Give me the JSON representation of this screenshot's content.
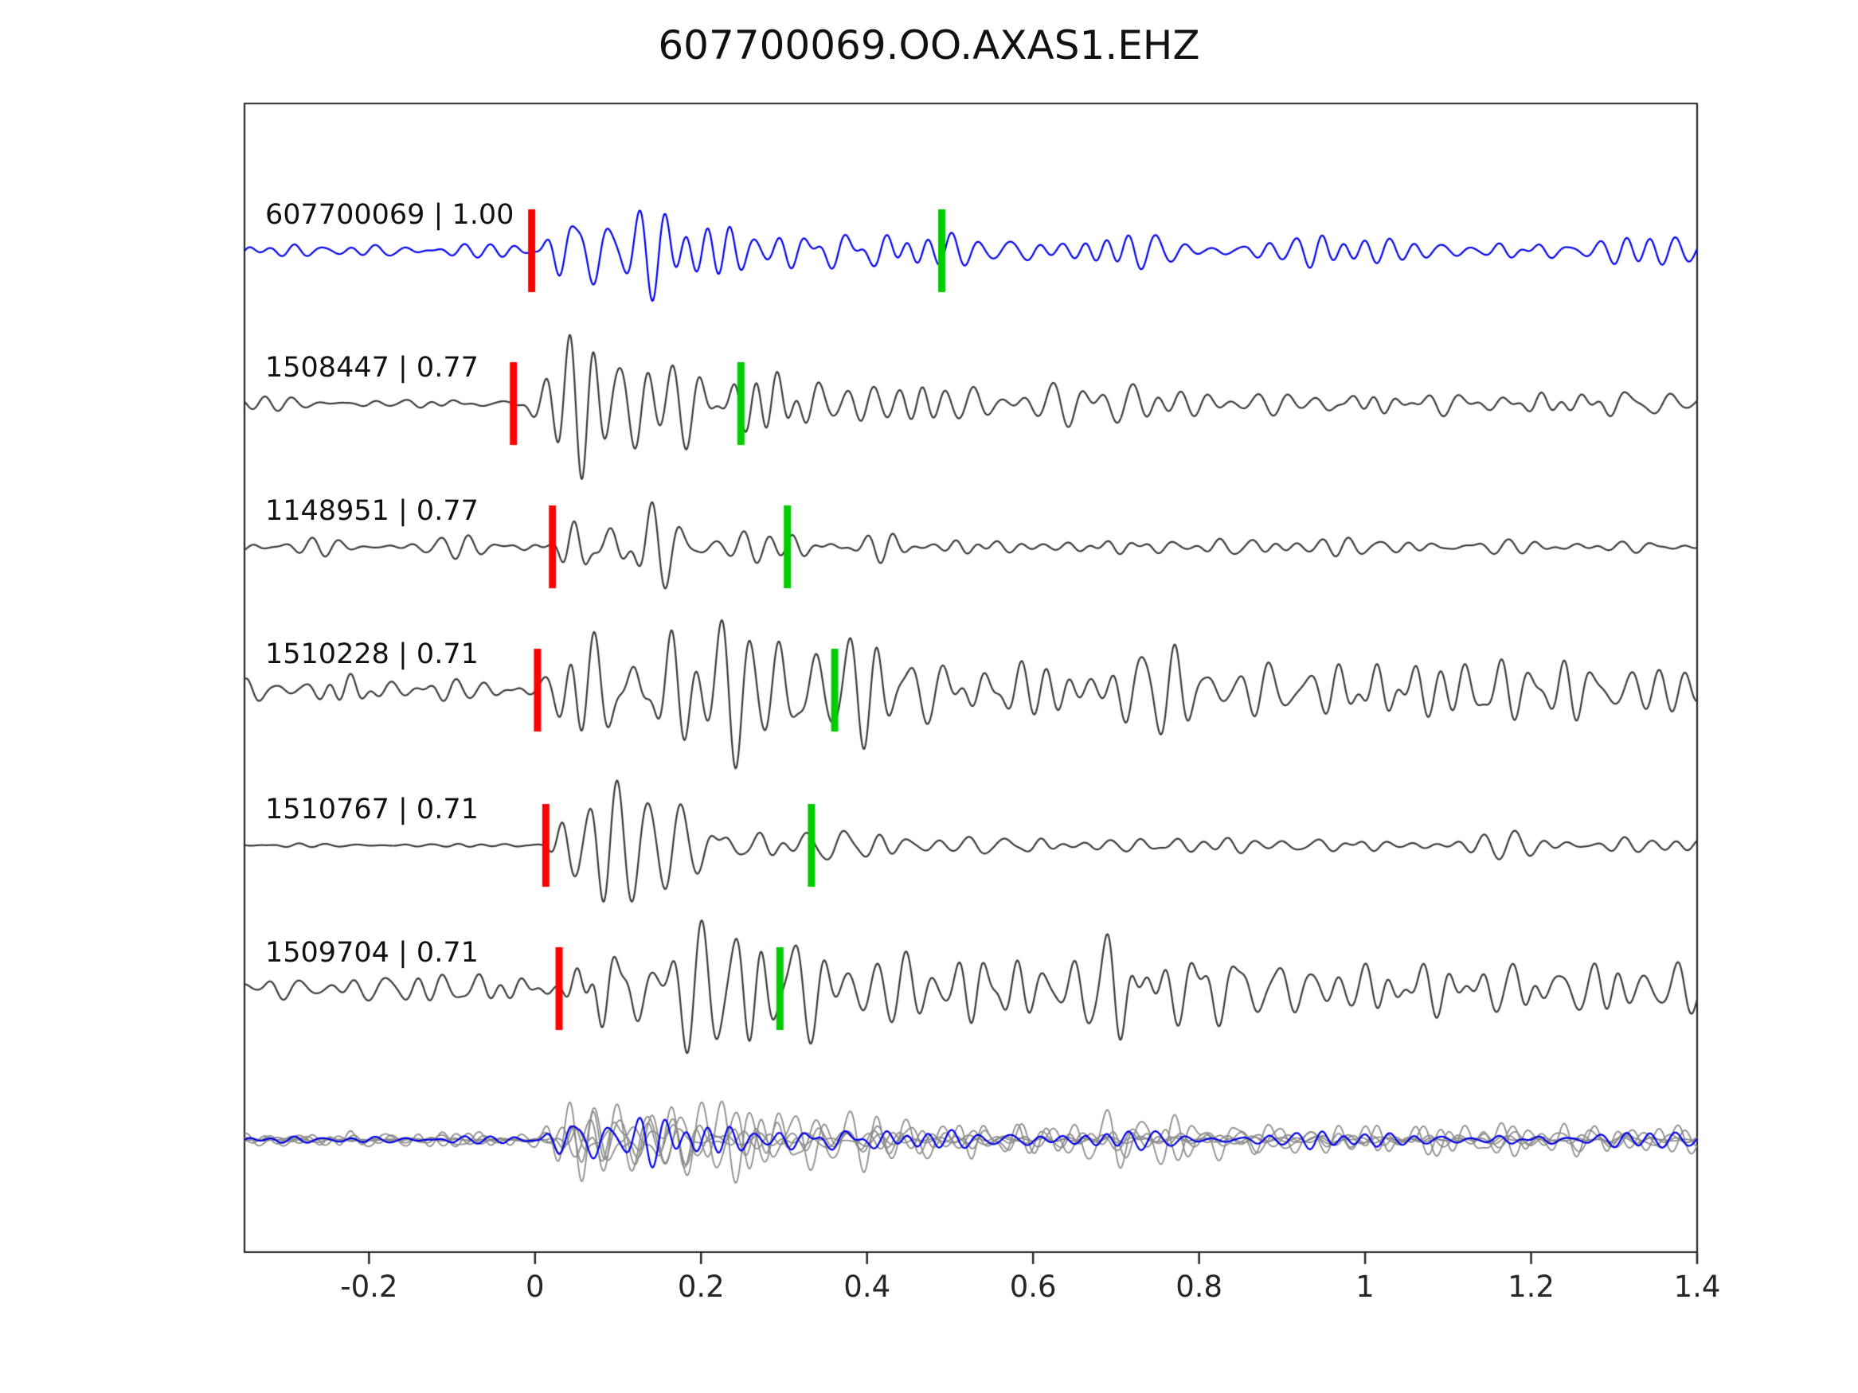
{
  "chart_data": {
    "type": "line",
    "title": "607700069.OO.AXAS1.EHZ",
    "xlabel": "",
    "ylabel": "",
    "xlim": [
      -0.35,
      1.4
    ],
    "grid": false,
    "legend": "none",
    "x_ticks": [
      -0.2,
      0,
      0.2,
      0.4,
      0.6,
      0.8,
      1,
      1.2,
      1.4
    ],
    "x_tick_labels": [
      "-0.2",
      "0",
      "0.2",
      "0.4",
      "0.6",
      "0.8",
      "1",
      "1.2",
      "1.4"
    ],
    "traces": [
      {
        "id": "607700069",
        "correlation": "1.00",
        "label": "607700069 | 1.00",
        "color": "#0000ee",
        "pick_red": -0.004,
        "pick_green": 0.49,
        "seed": 11,
        "pre_amp": 8,
        "burst_amp": 92,
        "rise": 0.045,
        "decay": 0.22,
        "tail_amp": 13
      },
      {
        "id": "1508447",
        "correlation": "0.77",
        "label": "1508447 | 0.77",
        "color": "#3a3a3a",
        "pick_red": -0.026,
        "pick_green": 0.248,
        "seed": 23,
        "pre_amp": 7,
        "burst_amp": 90,
        "rise": 0.045,
        "decay": 0.26,
        "tail_amp": 16
      },
      {
        "id": "1148951",
        "correlation": "0.77",
        "label": "1148951 | 0.77",
        "color": "#3a3a3a",
        "pick_red": 0.021,
        "pick_green": 0.304,
        "seed": 37,
        "pre_amp": 9,
        "burst_amp": 74,
        "rise": 0.04,
        "decay": 0.18,
        "tail_amp": 9
      },
      {
        "id": "1510228",
        "correlation": "0.71",
        "label": "1510228 | 0.71",
        "color": "#3a3a3a",
        "pick_red": 0.003,
        "pick_green": 0.361,
        "seed": 41,
        "pre_amp": 30,
        "burst_amp": 84,
        "rise": 0.045,
        "decay": 0.45,
        "tail_amp": 34
      },
      {
        "id": "1510767",
        "correlation": "0.71",
        "label": "1510767 | 0.71",
        "color": "#3a3a3a",
        "pick_red": 0.013,
        "pick_green": 0.333,
        "seed": 53,
        "pre_amp": 3.5,
        "burst_amp": 80,
        "rise": 0.04,
        "decay": 0.18,
        "tail_amp": 11
      },
      {
        "id": "1509704",
        "correlation": "0.71",
        "label": "1509704 | 0.71",
        "color": "#3a3a3a",
        "pick_red": 0.029,
        "pick_green": 0.295,
        "seed": 67,
        "pre_amp": 17,
        "burst_amp": 80,
        "rise": 0.045,
        "decay": 0.5,
        "tail_amp": 28
      }
    ],
    "overlay_row": {
      "description": "all detected traces overlaid, template highlighted",
      "gray_color": "#8c8c8c",
      "highlight_color": "#0000ee",
      "amplitude_scale": 0.55
    },
    "colors": {
      "pick_red": "#ff0000",
      "pick_green": "#00cc00",
      "axis": "#262626",
      "template_blue": "#0000ee",
      "trace_gray": "#3a3a3a"
    }
  }
}
